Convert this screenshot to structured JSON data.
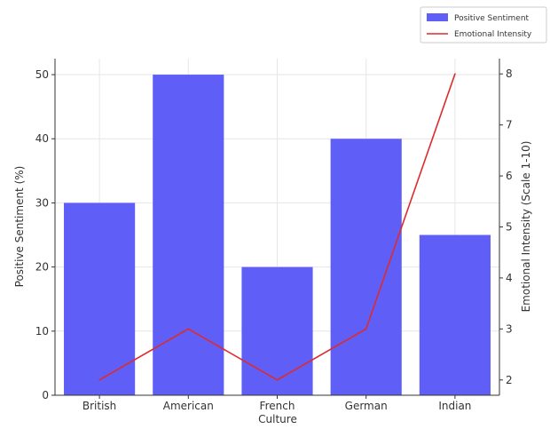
{
  "chart_data": {
    "type": "bar",
    "categories": [
      "British",
      "American",
      "French",
      "German",
      "Indian"
    ],
    "xlabel": "Culture",
    "grid": true,
    "legend_position": "top-right",
    "series": [
      {
        "name": "Positive Sentiment",
        "type": "bar",
        "axis": "left",
        "color": "#5f5ff7",
        "values": [
          30,
          50,
          20,
          40,
          25
        ]
      },
      {
        "name": "Emotional Intensity",
        "type": "line",
        "axis": "right",
        "color": "#dd2b2b",
        "values": [
          2,
          3,
          2,
          3,
          8
        ]
      }
    ],
    "y_left": {
      "label": "Positive Sentiment (%)",
      "lim": [
        0,
        52.5
      ],
      "ticks": [
        0,
        10,
        20,
        30,
        40,
        50
      ]
    },
    "y_right": {
      "label": "Emotional Intensity (Scale 1-10)",
      "lim": [
        1.7,
        8.3
      ],
      "ticks": [
        2,
        3,
        4,
        5,
        6,
        7,
        8
      ]
    }
  }
}
